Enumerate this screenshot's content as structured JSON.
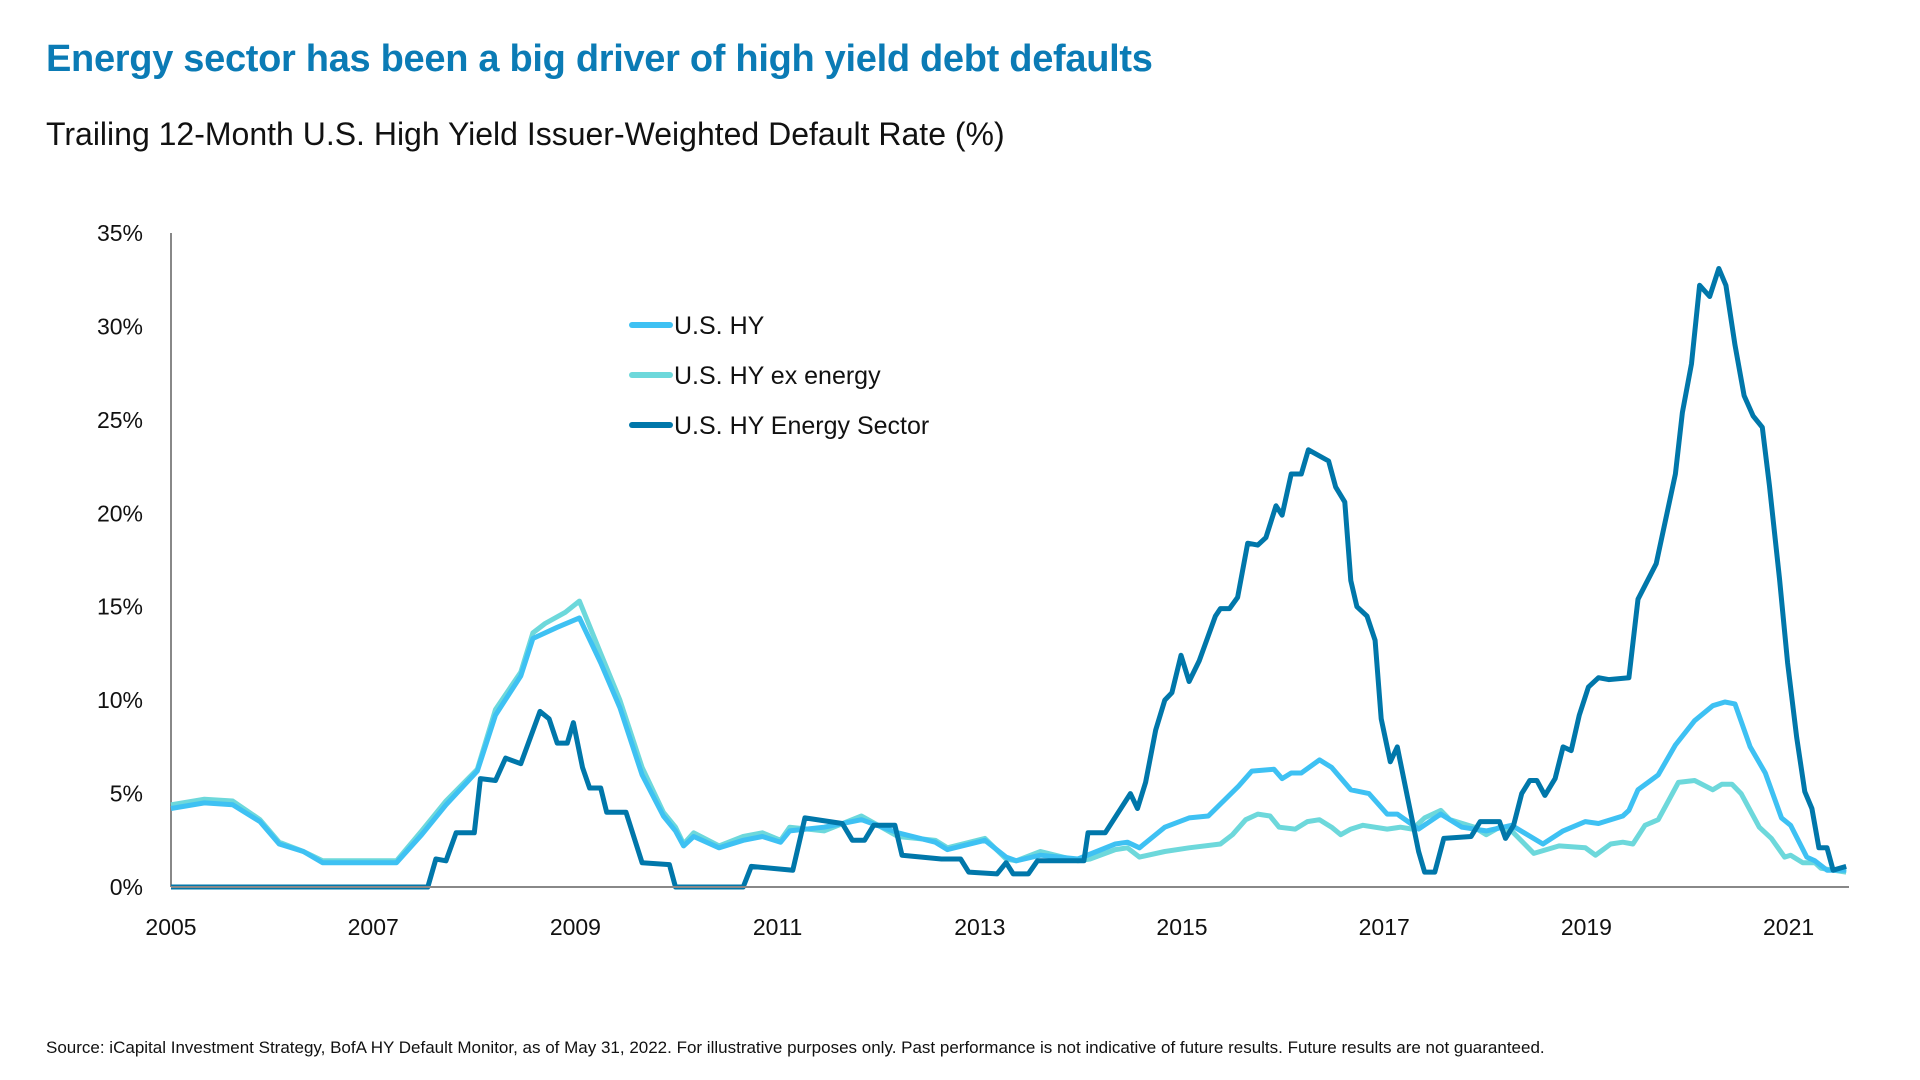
{
  "header": {
    "title": "Energy sector has been a big driver of high yield debt defaults",
    "subtitle": "Trailing 12-Month U.S. High Yield Issuer-Weighted Default Rate (%)"
  },
  "footer": {
    "source": "Source: iCapital Investment Strategy, BofA HY Default Monitor, as of May 31, 2022. For illustrative purposes only. Past performance is not indicative of future results. Future results are not guaranteed."
  },
  "chart_data": {
    "type": "line",
    "title": "Trailing 12-Month U.S. High Yield Issuer-Weighted Default Rate (%)",
    "xlabel": "",
    "ylabel": "",
    "xlim": [
      2005,
      2021.57
    ],
    "ylim": [
      0,
      35
    ],
    "x_ticks": [
      "2005",
      "2007",
      "2009",
      "2011",
      "2013",
      "2015",
      "2017",
      "2019",
      "2021"
    ],
    "x_tick_values": [
      2005,
      2007,
      2009,
      2011,
      2013,
      2015,
      2017,
      2019,
      2021
    ],
    "y_ticks": [
      "0%",
      "5%",
      "10%",
      "15%",
      "20%",
      "25%",
      "30%",
      "35%"
    ],
    "y_tick_values": [
      0,
      5,
      10,
      15,
      20,
      25,
      30,
      35
    ],
    "grid": false,
    "legend_position": "top-center",
    "series": [
      {
        "name": "U.S. HY",
        "color": "#3ec1f3",
        "points": [
          [
            2005.0,
            4.2
          ],
          [
            2005.33,
            4.5
          ],
          [
            2005.61,
            4.4
          ],
          [
            2005.88,
            3.5
          ],
          [
            2006.07,
            2.3
          ],
          [
            2006.31,
            1.9
          ],
          [
            2006.5,
            1.3
          ],
          [
            2006.99,
            1.3
          ],
          [
            2007.23,
            1.3
          ],
          [
            2007.48,
            2.8
          ],
          [
            2007.72,
            4.4
          ],
          [
            2008.03,
            6.2
          ],
          [
            2008.21,
            9.2
          ],
          [
            2008.46,
            11.3
          ],
          [
            2008.58,
            13.3
          ],
          [
            2008.82,
            13.9
          ],
          [
            2009.04,
            14.4
          ],
          [
            2009.25,
            12.0
          ],
          [
            2009.44,
            9.6
          ],
          [
            2009.66,
            6.0
          ],
          [
            2009.87,
            3.8
          ],
          [
            2009.99,
            3.0
          ],
          [
            2010.07,
            2.2
          ],
          [
            2010.17,
            2.7
          ],
          [
            2010.42,
            2.1
          ],
          [
            2010.66,
            2.5
          ],
          [
            2010.85,
            2.7
          ],
          [
            2011.03,
            2.4
          ],
          [
            2011.12,
            3.0
          ],
          [
            2011.46,
            3.2
          ],
          [
            2011.83,
            3.6
          ],
          [
            2012.19,
            2.9
          ],
          [
            2012.56,
            2.4
          ],
          [
            2012.68,
            2.0
          ],
          [
            2013.05,
            2.5
          ],
          [
            2013.26,
            1.6
          ],
          [
            2013.36,
            1.4
          ],
          [
            2013.6,
            1.7
          ],
          [
            2013.97,
            1.5
          ],
          [
            2014.34,
            2.3
          ],
          [
            2014.46,
            2.4
          ],
          [
            2014.58,
            2.1
          ],
          [
            2014.83,
            3.2
          ],
          [
            2015.07,
            3.7
          ],
          [
            2015.26,
            3.8
          ],
          [
            2015.56,
            5.4
          ],
          [
            2015.69,
            6.2
          ],
          [
            2015.91,
            6.3
          ],
          [
            2015.99,
            5.8
          ],
          [
            2016.08,
            6.1
          ],
          [
            2016.18,
            6.1
          ],
          [
            2016.36,
            6.8
          ],
          [
            2016.48,
            6.4
          ],
          [
            2016.67,
            5.2
          ],
          [
            2016.85,
            5.0
          ],
          [
            2017.03,
            3.9
          ],
          [
            2017.13,
            3.9
          ],
          [
            2017.34,
            3.1
          ],
          [
            2017.56,
            3.9
          ],
          [
            2017.77,
            3.2
          ],
          [
            2018.01,
            3.0
          ],
          [
            2018.26,
            3.3
          ],
          [
            2018.57,
            2.3
          ],
          [
            2018.77,
            3.0
          ],
          [
            2018.99,
            3.5
          ],
          [
            2019.12,
            3.4
          ],
          [
            2019.36,
            3.8
          ],
          [
            2019.42,
            4.1
          ],
          [
            2019.51,
            5.2
          ],
          [
            2019.71,
            6.0
          ],
          [
            2019.88,
            7.6
          ],
          [
            2020.07,
            8.9
          ],
          [
            2020.25,
            9.7
          ],
          [
            2020.37,
            9.9
          ],
          [
            2020.47,
            9.8
          ],
          [
            2020.62,
            7.5
          ],
          [
            2020.77,
            6.1
          ],
          [
            2020.93,
            3.7
          ],
          [
            2021.02,
            3.3
          ],
          [
            2021.18,
            1.6
          ],
          [
            2021.26,
            1.4
          ],
          [
            2021.38,
            0.9
          ],
          [
            2021.57,
            0.9
          ]
        ]
      },
      {
        "name": "U.S. HY ex energy",
        "color": "#6dd8db",
        "points": [
          [
            2005.0,
            4.4
          ],
          [
            2005.33,
            4.7
          ],
          [
            2005.61,
            4.6
          ],
          [
            2005.88,
            3.6
          ],
          [
            2006.07,
            2.4
          ],
          [
            2006.31,
            1.9
          ],
          [
            2006.5,
            1.4
          ],
          [
            2006.99,
            1.4
          ],
          [
            2007.23,
            1.4
          ],
          [
            2007.48,
            3.0
          ],
          [
            2007.72,
            4.6
          ],
          [
            2008.03,
            6.3
          ],
          [
            2008.21,
            9.5
          ],
          [
            2008.46,
            11.5
          ],
          [
            2008.58,
            13.6
          ],
          [
            2008.7,
            14.1
          ],
          [
            2008.9,
            14.7
          ],
          [
            2009.04,
            15.3
          ],
          [
            2009.25,
            12.5
          ],
          [
            2009.44,
            10.0
          ],
          [
            2009.66,
            6.4
          ],
          [
            2009.87,
            4.0
          ],
          [
            2009.99,
            3.2
          ],
          [
            2010.07,
            2.3
          ],
          [
            2010.17,
            2.9
          ],
          [
            2010.42,
            2.2
          ],
          [
            2010.66,
            2.7
          ],
          [
            2010.85,
            2.9
          ],
          [
            2011.03,
            2.5
          ],
          [
            2011.12,
            3.2
          ],
          [
            2011.46,
            3.0
          ],
          [
            2011.83,
            3.8
          ],
          [
            2012.19,
            2.7
          ],
          [
            2012.56,
            2.5
          ],
          [
            2012.68,
            2.1
          ],
          [
            2013.05,
            2.6
          ],
          [
            2013.26,
            1.5
          ],
          [
            2013.36,
            1.4
          ],
          [
            2013.6,
            1.9
          ],
          [
            2013.97,
            1.4
          ],
          [
            2014.09,
            1.5
          ],
          [
            2014.34,
            2.0
          ],
          [
            2014.46,
            2.1
          ],
          [
            2014.58,
            1.6
          ],
          [
            2014.83,
            1.9
          ],
          [
            2015.07,
            2.1
          ],
          [
            2015.38,
            2.3
          ],
          [
            2015.5,
            2.8
          ],
          [
            2015.63,
            3.6
          ],
          [
            2015.75,
            3.9
          ],
          [
            2015.87,
            3.8
          ],
          [
            2015.96,
            3.2
          ],
          [
            2016.12,
            3.1
          ],
          [
            2016.24,
            3.5
          ],
          [
            2016.36,
            3.6
          ],
          [
            2016.48,
            3.2
          ],
          [
            2016.57,
            2.8
          ],
          [
            2016.67,
            3.1
          ],
          [
            2016.79,
            3.3
          ],
          [
            2017.03,
            3.1
          ],
          [
            2017.16,
            3.2
          ],
          [
            2017.28,
            3.1
          ],
          [
            2017.4,
            3.7
          ],
          [
            2017.56,
            4.1
          ],
          [
            2017.65,
            3.6
          ],
          [
            2017.89,
            3.2
          ],
          [
            2018.01,
            2.8
          ],
          [
            2018.14,
            3.2
          ],
          [
            2018.26,
            3.0
          ],
          [
            2018.48,
            1.8
          ],
          [
            2018.73,
            2.2
          ],
          [
            2018.99,
            2.1
          ],
          [
            2019.09,
            1.7
          ],
          [
            2019.24,
            2.3
          ],
          [
            2019.36,
            2.4
          ],
          [
            2019.46,
            2.3
          ],
          [
            2019.58,
            3.3
          ],
          [
            2019.71,
            3.6
          ],
          [
            2019.79,
            4.4
          ],
          [
            2019.91,
            5.6
          ],
          [
            2020.07,
            5.7
          ],
          [
            2020.25,
            5.2
          ],
          [
            2020.34,
            5.5
          ],
          [
            2020.44,
            5.5
          ],
          [
            2020.53,
            5.0
          ],
          [
            2020.71,
            3.2
          ],
          [
            2020.83,
            2.6
          ],
          [
            2020.96,
            1.6
          ],
          [
            2021.02,
            1.7
          ],
          [
            2021.14,
            1.3
          ],
          [
            2021.26,
            1.3
          ],
          [
            2021.32,
            1.0
          ],
          [
            2021.57,
            0.8
          ]
        ]
      },
      {
        "name": "U.S. HY Energy Sector",
        "color": "#0077aa",
        "points": [
          [
            2005.0,
            0
          ],
          [
            2007.54,
            0
          ],
          [
            2007.62,
            1.5
          ],
          [
            2007.72,
            1.4
          ],
          [
            2007.82,
            2.9
          ],
          [
            2008.0,
            2.9
          ],
          [
            2008.06,
            5.8
          ],
          [
            2008.21,
            5.7
          ],
          [
            2008.31,
            6.9
          ],
          [
            2008.46,
            6.6
          ],
          [
            2008.65,
            9.4
          ],
          [
            2008.74,
            9.0
          ],
          [
            2008.82,
            7.7
          ],
          [
            2008.92,
            7.7
          ],
          [
            2008.98,
            8.8
          ],
          [
            2009.07,
            6.4
          ],
          [
            2009.14,
            5.3
          ],
          [
            2009.25,
            5.3
          ],
          [
            2009.31,
            4.0
          ],
          [
            2009.5,
            4.0
          ],
          [
            2009.66,
            1.3
          ],
          [
            2009.93,
            1.2
          ],
          [
            2009.99,
            0
          ],
          [
            2010.66,
            0
          ],
          [
            2010.74,
            1.1
          ],
          [
            2011.15,
            0.9
          ],
          [
            2011.27,
            3.7
          ],
          [
            2011.64,
            3.4
          ],
          [
            2011.74,
            2.5
          ],
          [
            2011.86,
            2.5
          ],
          [
            2011.95,
            3.3
          ],
          [
            2012.16,
            3.3
          ],
          [
            2012.23,
            1.7
          ],
          [
            2012.62,
            1.5
          ],
          [
            2012.81,
            1.5
          ],
          [
            2012.89,
            0.8
          ],
          [
            2013.17,
            0.7
          ],
          [
            2013.26,
            1.3
          ],
          [
            2013.33,
            0.7
          ],
          [
            2013.48,
            0.7
          ],
          [
            2013.57,
            1.4
          ],
          [
            2014.03,
            1.4
          ],
          [
            2014.07,
            2.9
          ],
          [
            2014.24,
            2.9
          ],
          [
            2014.49,
            5.0
          ],
          [
            2014.56,
            4.2
          ],
          [
            2014.64,
            5.6
          ],
          [
            2014.74,
            8.4
          ],
          [
            2014.83,
            10.0
          ],
          [
            2014.9,
            10.4
          ],
          [
            2014.99,
            12.4
          ],
          [
            2015.07,
            11.0
          ],
          [
            2015.17,
            12.1
          ],
          [
            2015.33,
            14.5
          ],
          [
            2015.38,
            14.9
          ],
          [
            2015.47,
            14.9
          ],
          [
            2015.55,
            15.5
          ],
          [
            2015.65,
            18.4
          ],
          [
            2015.75,
            18.3
          ],
          [
            2015.83,
            18.7
          ],
          [
            2015.93,
            20.4
          ],
          [
            2015.99,
            19.9
          ],
          [
            2016.08,
            22.1
          ],
          [
            2016.18,
            22.1
          ],
          [
            2016.25,
            23.4
          ],
          [
            2016.45,
            22.8
          ],
          [
            2016.52,
            21.4
          ],
          [
            2016.61,
            20.6
          ],
          [
            2016.67,
            16.4
          ],
          [
            2016.73,
            15.0
          ],
          [
            2016.83,
            14.5
          ],
          [
            2016.91,
            13.2
          ],
          [
            2016.97,
            9.0
          ],
          [
            2017.06,
            6.7
          ],
          [
            2017.13,
            7.5
          ],
          [
            2017.23,
            4.8
          ],
          [
            2017.34,
            1.9
          ],
          [
            2017.4,
            0.8
          ],
          [
            2017.5,
            0.8
          ],
          [
            2017.59,
            2.6
          ],
          [
            2017.86,
            2.7
          ],
          [
            2017.95,
            3.5
          ],
          [
            2018.14,
            3.5
          ],
          [
            2018.2,
            2.6
          ],
          [
            2018.28,
            3.3
          ],
          [
            2018.36,
            5.0
          ],
          [
            2018.44,
            5.7
          ],
          [
            2018.51,
            5.7
          ],
          [
            2018.59,
            4.9
          ],
          [
            2018.69,
            5.8
          ],
          [
            2018.77,
            7.5
          ],
          [
            2018.85,
            7.3
          ],
          [
            2018.93,
            9.2
          ],
          [
            2019.02,
            10.7
          ],
          [
            2019.12,
            11.2
          ],
          [
            2019.22,
            11.1
          ],
          [
            2019.42,
            11.2
          ],
          [
            2019.51,
            15.4
          ],
          [
            2019.69,
            17.3
          ],
          [
            2019.88,
            22.1
          ],
          [
            2019.95,
            25.4
          ],
          [
            2020.04,
            28.0
          ],
          [
            2020.12,
            32.2
          ],
          [
            2020.22,
            31.6
          ],
          [
            2020.31,
            33.1
          ],
          [
            2020.38,
            32.2
          ],
          [
            2020.47,
            29.0
          ],
          [
            2020.56,
            26.3
          ],
          [
            2020.65,
            25.2
          ],
          [
            2020.74,
            24.6
          ],
          [
            2020.81,
            21.5
          ],
          [
            2020.91,
            16.5
          ],
          [
            2020.99,
            12.0
          ],
          [
            2021.08,
            8.0
          ],
          [
            2021.16,
            5.1
          ],
          [
            2021.23,
            4.2
          ],
          [
            2021.3,
            2.1
          ],
          [
            2021.38,
            2.1
          ],
          [
            2021.44,
            0.9
          ],
          [
            2021.57,
            1.1
          ]
        ]
      }
    ]
  }
}
